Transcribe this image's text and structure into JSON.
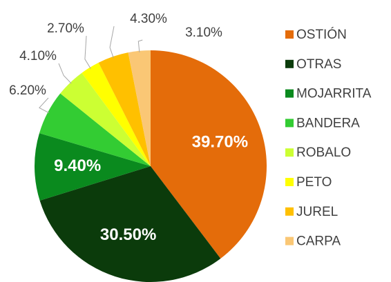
{
  "chart_data": {
    "type": "pie",
    "categories": [
      "OSTIÓN",
      "OTRAS",
      "MOJARRITA",
      "BANDERA",
      "ROBALO",
      "PETO",
      "JUREL",
      "CARPA"
    ],
    "values": [
      39.7,
      30.5,
      9.4,
      6.2,
      4.1,
      2.7,
      4.3,
      3.1
    ],
    "value_labels": [
      "39.70%",
      "30.50%",
      "9.40%",
      "6.20%",
      "4.10%",
      "2.70%",
      "4.30%",
      "3.10%"
    ],
    "colors": [
      "#e46c0a",
      "#0b3b0b",
      "#0a8a1e",
      "#33cc33",
      "#ccff33",
      "#ffff00",
      "#ffc000",
      "#fac775"
    ],
    "legend": "right"
  }
}
